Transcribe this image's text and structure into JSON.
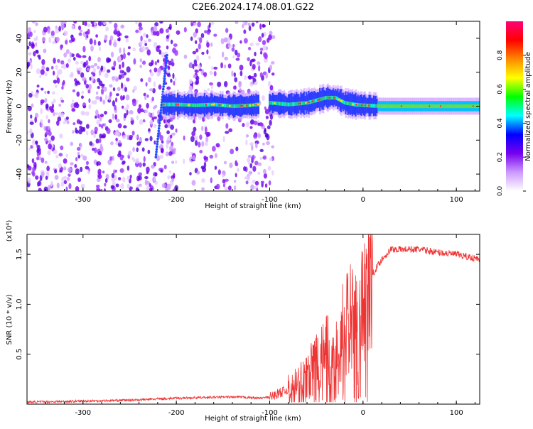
{
  "page_title": "C2E6.2024.174.08.01.G22",
  "chart_data": [
    {
      "type": "heatmap",
      "xlabel": "Height of straight line (km)",
      "ylabel": "Frequency (Hz)",
      "xlim": [
        -360,
        125
      ],
      "ylim": [
        -50,
        50
      ],
      "x_ticks": [
        -300,
        -200,
        -100,
        0,
        100
      ],
      "y_ticks": [
        -40,
        -20,
        0,
        20,
        40
      ],
      "colorbar": {
        "label": "Normalized spectral amplitude",
        "range": [
          0,
          1
        ],
        "ticks": [
          0.0,
          0.2,
          0.4,
          0.6,
          0.8
        ],
        "colormap": [
          "#ffffff",
          "#cc99ff",
          "#7700ee",
          "#0000ff",
          "#00ffff",
          "#00ff00",
          "#ffff00",
          "#ff8800",
          "#ff0000",
          "#ff0077"
        ]
      },
      "series": [
        {
          "description_points": [
            [
              -360,
              0
            ],
            [
              -300,
              0
            ],
            [
              -250,
              0
            ],
            [
              -215,
              1
            ],
            [
              -200,
              1
            ],
            [
              -180,
              0.5
            ],
            [
              -160,
              1
            ],
            [
              -140,
              0
            ],
            [
              -120,
              0.5
            ],
            [
              -100,
              2
            ],
            [
              -80,
              1
            ],
            [
              -60,
              2
            ],
            [
              -40,
              5
            ],
            [
              -30,
              5
            ],
            [
              -20,
              2
            ],
            [
              -10,
              1
            ],
            [
              0,
              0.5
            ],
            [
              20,
              0
            ],
            [
              60,
              0
            ],
            [
              125,
              0
            ]
          ]
        }
      ],
      "grid": false
    },
    {
      "type": "line",
      "xlabel": "Height of straight line (km)",
      "ylabel": "SNR (10 * v/v)",
      "y_multiplier_label": "(x10⁴)",
      "xlim": [
        -360,
        125
      ],
      "ylim": [
        0,
        1.7
      ],
      "x_ticks": [
        -300,
        -200,
        -100,
        0,
        100
      ],
      "y_ticks": [
        0.5,
        1.0,
        1.5
      ],
      "y_tick_labels": [
        "0.5",
        "1.0",
        "1.5"
      ],
      "color": "#ee3333",
      "series": [
        {
          "x": [
            -360,
            -300,
            -250,
            -200,
            -150,
            -130,
            -110,
            -100,
            -80,
            -60,
            -50,
            -40,
            -30,
            -20,
            -10,
            0,
            5,
            8,
            10,
            20,
            30,
            40,
            60,
            80,
            100,
            125
          ],
          "y": [
            0.02,
            0.03,
            0.04,
            0.06,
            0.07,
            0.07,
            0.06,
            0.07,
            0.15,
            0.3,
            0.45,
            0.55,
            0.65,
            0.85,
            1.0,
            1.1,
            1.25,
            1.55,
            1.3,
            1.45,
            1.55,
            1.55,
            1.55,
            1.52,
            1.5,
            1.45
          ]
        }
      ],
      "grid": false
    }
  ]
}
